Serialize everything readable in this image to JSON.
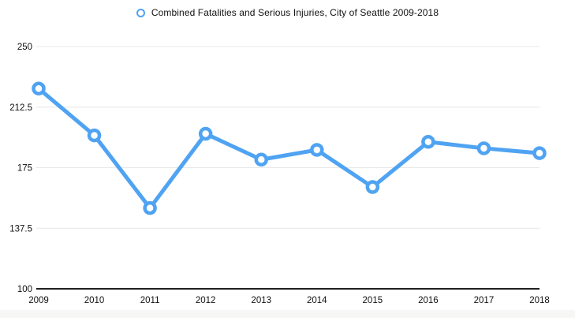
{
  "legend": {
    "marker_icon": "ring-marker-icon",
    "label": "Combined Fatalities and Serious Injuries, City of Seattle 2009-2018"
  },
  "chart_data": {
    "type": "line",
    "title": "Combined Fatalities and Serious Injuries, City of Seattle 2009-2018",
    "categories": [
      "2009",
      "2010",
      "2011",
      "2012",
      "2013",
      "2014",
      "2015",
      "2016",
      "2017",
      "2018"
    ],
    "series": [
      {
        "name": "Combined Fatalities and Serious Injuries",
        "values": [
          224,
          195,
          150,
          196,
          180,
          186,
          163,
          191,
          187,
          184
        ]
      }
    ],
    "xlabel": "",
    "ylabel": "",
    "ylim": [
      100,
      250
    ],
    "yticks": [
      250,
      212.5,
      175,
      137.5,
      100
    ],
    "ytick_labels": [
      "250",
      "212.5",
      "175",
      "137.5",
      "100"
    ],
    "grid": true,
    "legend_position": "top-center",
    "colors": {
      "line": "#4FA3F2",
      "marker_fill": "#FFFFFF",
      "gridline": "#E7E7E7",
      "axis": "#000000",
      "text": "#111111"
    }
  }
}
